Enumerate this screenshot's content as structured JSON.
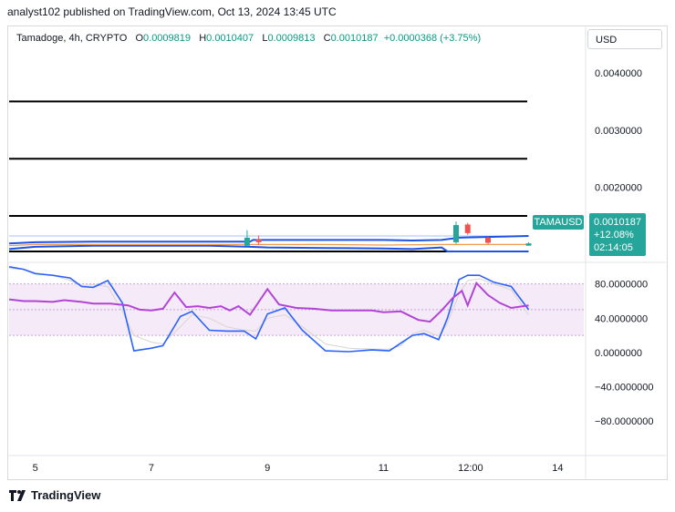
{
  "header": {
    "publisher_line": "analyst102 published on TradingView.com, Oct 13, 2024 13:45 UTC"
  },
  "info": {
    "symbol": "Tamadoge, 4h, CRYPTO",
    "open_label": "O",
    "open": "0.0009819",
    "high_label": "H",
    "high": "0.0010407",
    "low_label": "L",
    "low": "0.0009813",
    "close_label": "C",
    "close": "0.0010187",
    "change": "+0.0000368 (+3.75%)"
  },
  "currency_button": "USD",
  "ticker_tag": "TAMAUSD",
  "price_tag": {
    "price": "0.0010187",
    "change_pct": "+12.08%",
    "countdown": "02:14:05"
  },
  "footer": {
    "brand": "TradingView"
  },
  "colors": {
    "accent": "#26a69a",
    "stoch_k": "#2962ff",
    "rsi": "#b144d6",
    "bb": "#1e53e5"
  },
  "chart_data": [
    {
      "type": "line",
      "title": "Tamadoge, 4h, CRYPTO",
      "x_tick_labels": [
        "5",
        "7",
        "9",
        "11",
        "12:00",
        "14"
      ],
      "x_ticks": [
        5,
        7,
        9,
        11,
        12.5,
        14
      ],
      "y_tick_labels": [
        "0.0040000",
        "0.0030000",
        "0.0020000"
      ],
      "y_ticks": [
        0.004,
        0.003,
        0.002
      ],
      "ylim": [
        0.00072,
        0.00435
      ],
      "xlim": [
        4.55,
        14.45
      ],
      "horizontal_levels": [
        0.0035,
        0.0025,
        0.0015,
        0.00088,
        0.00115
      ],
      "series": [
        {
          "x": [
            4.55,
            5,
            6,
            7,
            8,
            8.7,
            8.75,
            9,
            10,
            11,
            11.5,
            12,
            12.3,
            13.5
          ],
          "values": [
            0.00102,
            0.00104,
            0.00105,
            0.00105,
            0.00105,
            0.00105,
            0.00108,
            0.00108,
            0.00108,
            0.00108,
            0.00107,
            0.00108,
            0.00112,
            0.00115
          ]
        },
        {
          "x": [
            4.55,
            5,
            6,
            7,
            8,
            8.7,
            9,
            10,
            11,
            11.5,
            12,
            12.1,
            13.5
          ],
          "values": [
            0.00092,
            0.00096,
            0.00098,
            0.00098,
            0.00098,
            0.00096,
            0.00095,
            0.00094,
            0.00093,
            0.00092,
            0.00095,
            0.00088,
            0.00088
          ]
        },
        {
          "x": [
            4.55,
            5,
            6,
            7,
            8,
            9,
            10,
            11,
            12,
            12.5,
            13.5
          ],
          "values": [
            0.00098,
            0.001,
            0.001,
            0.001,
            0.001,
            0.001,
            0.001,
            0.00099,
            0.001,
            0.001,
            0.001
          ]
        }
      ],
      "candles": [
        {
          "x": 8.65,
          "open": 0.00098,
          "close": 0.00112,
          "high": 0.00125,
          "low": 0.00097
        },
        {
          "x": 8.85,
          "open": 0.00109,
          "close": 0.00104,
          "high": 0.00116,
          "low": 0.001
        },
        {
          "x": 12.25,
          "open": 0.00104,
          "close": 0.00134,
          "high": 0.0014,
          "low": 0.00101
        },
        {
          "x": 12.45,
          "open": 0.00135,
          "close": 0.0012,
          "high": 0.00138,
          "low": 0.00117
        },
        {
          "x": 12.8,
          "open": 0.00112,
          "close": 0.00103,
          "high": 0.00114,
          "low": 0.00101
        },
        {
          "x": 13.5,
          "open": 0.00098,
          "close": 0.00102,
          "high": 0.00104,
          "low": 0.00098
        }
      ]
    },
    {
      "type": "line",
      "y_tick_labels": [
        "80.0000000",
        "40.0000000",
        "0.0000000",
        "−40.0000000",
        "−80.0000000"
      ],
      "y_ticks": [
        80,
        40,
        0,
        -40,
        -80
      ],
      "ylim": [
        -118,
        103
      ],
      "xlim": [
        4.55,
        14.45
      ],
      "band": [
        20,
        80
      ],
      "mid_line": 50,
      "series": [
        {
          "x": [
            4.55,
            4.8,
            5,
            5.3,
            5.6,
            5.8,
            6,
            6.25,
            6.5,
            6.7,
            7,
            7.2,
            7.5,
            7.7,
            8,
            8.3,
            8.6,
            8.8,
            9,
            9.3,
            9.6,
            10,
            10.4,
            10.8,
            11.1,
            11.3,
            11.5,
            11.7,
            11.95,
            12.1,
            12.3,
            12.45,
            12.65,
            12.9,
            13.2,
            13.5
          ],
          "values": [
            100,
            97,
            92,
            90,
            87,
            77,
            76,
            84,
            58,
            2,
            5,
            8,
            42,
            48,
            26,
            25,
            25,
            16,
            45,
            52,
            26,
            2,
            1,
            3,
            2,
            11,
            20,
            22,
            15,
            40,
            85,
            90,
            90,
            82,
            77,
            50
          ]
        },
        {
          "x": [
            4.55,
            4.8,
            5,
            5.3,
            5.6,
            5.8,
            6,
            6.25,
            6.5,
            6.7,
            7,
            7.2,
            7.5,
            7.7,
            8,
            8.3,
            8.6,
            8.8,
            9,
            9.3,
            9.6,
            10,
            10.4,
            10.8,
            11.1,
            11.3,
            11.5,
            11.7,
            11.95,
            12.1,
            12.3,
            12.45,
            12.65,
            12.9,
            13.2,
            13.5
          ],
          "values": [
            98,
            97,
            93,
            90,
            84,
            78,
            79,
            77,
            48,
            20,
            12,
            10,
            30,
            44,
            40,
            30,
            26,
            25,
            40,
            44,
            30,
            10,
            5,
            4,
            4,
            8,
            22,
            26,
            19,
            34,
            68,
            84,
            86,
            80,
            73,
            44
          ]
        },
        {
          "x": [
            4.55,
            4.8,
            5,
            5.3,
            5.5,
            5.8,
            6,
            6.3,
            6.6,
            6.8,
            7,
            7.2,
            7.4,
            7.6,
            7.8,
            8,
            8.2,
            8.35,
            8.5,
            8.7,
            9,
            9.2,
            9.5,
            9.8,
            10.1,
            10.5,
            10.8,
            11,
            11.3,
            11.6,
            11.8,
            12,
            12.2,
            12.35,
            12.45,
            12.6,
            12.8,
            13,
            13.2,
            13.5
          ],
          "values": [
            62,
            60,
            60,
            59,
            61,
            59,
            57,
            57,
            55,
            50,
            49,
            51,
            70,
            53,
            54,
            52,
            54,
            49,
            54,
            44,
            74,
            56,
            52,
            51,
            49,
            49,
            49,
            47,
            48,
            38,
            36,
            49,
            64,
            72,
            55,
            81,
            67,
            58,
            52,
            55
          ]
        }
      ]
    }
  ]
}
